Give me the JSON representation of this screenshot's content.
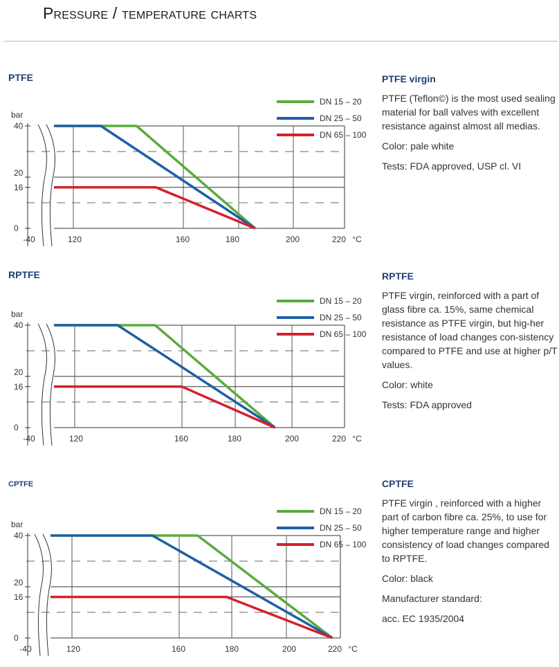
{
  "page": {
    "title": "Pressure / temperature charts"
  },
  "sections": [
    {
      "label": "PTFE",
      "desc_title": "PTFE virgin",
      "desc_body": "PTFE (Teflon©) is the most used sealing material for ball valves with excellent resistance against almost all medias.",
      "desc_lines": [
        "Color: pale white",
        "Tests: FDA approved, USP cl. VI"
      ]
    },
    {
      "label": "RPTFE",
      "desc_title": "RPTFE",
      "desc_body": "PTFE virgin, reinforced with a part of glass fibre ca. 15%, same chemical resistance as PTFE virgin, but hig-her resistance of load changes con-sistency compared to PTFE and use at higher p/T values.",
      "desc_lines": [
        "Color: white",
        "Tests: FDA approved"
      ]
    },
    {
      "label": "CPTFE",
      "desc_title": "CPTFE",
      "desc_body": "PTFE virgin , reinforced with a higher part of carbon fibre ca. 25%, to use for higher temperature range and higher consistency of load changes compared to RPTFE.",
      "desc_lines": [
        "Color: black",
        "Manufacturer standard:",
        "acc. EC 1935/2004"
      ]
    }
  ],
  "colors": {
    "series_green": "#5aab3c",
    "series_blue": "#1e5fa6",
    "series_red": "#d4202c",
    "label_blue": "#1f3f78",
    "rule": "#c9b97a"
  },
  "chart_data": [
    {
      "type": "line",
      "title": "PTFE",
      "ylabel": "bar",
      "xunit": "°C",
      "ytick_labels": [
        "0",
        "16",
        "20",
        "40"
      ],
      "xtick_labels": [
        "-40",
        "120",
        "160",
        "180",
        "200",
        "220"
      ],
      "xlim": [
        120,
        220
      ],
      "ylim": [
        0,
        40
      ],
      "axis_break": true,
      "series": [
        {
          "name": "DN 15 – 20",
          "color": "#5aab3c",
          "points": [
            [
              100,
              40
            ],
            [
              143,
              40
            ],
            [
              186,
              0
            ]
          ]
        },
        {
          "name": "DN 25 – 50",
          "color": "#1e5fa6",
          "points": [
            [
              100,
              40
            ],
            [
              130,
              40
            ],
            [
              186,
              0
            ]
          ]
        },
        {
          "name": "DN 65 – 100",
          "color": "#d4202c",
          "points": [
            [
              100,
              16
            ],
            [
              150,
              16
            ],
            [
              186,
              0
            ]
          ]
        }
      ]
    },
    {
      "type": "line",
      "title": "RPTFE",
      "ylabel": "bar",
      "xunit": "°C",
      "ytick_labels": [
        "0",
        "16",
        "20",
        "40"
      ],
      "xtick_labels": [
        "-40",
        "120",
        "160",
        "180",
        "200",
        "220"
      ],
      "xlim": [
        120,
        220
      ],
      "ylim": [
        0,
        40
      ],
      "axis_break": true,
      "series": [
        {
          "name": "DN 15 – 20",
          "color": "#5aab3c",
          "points": [
            [
              100,
              40
            ],
            [
              150,
              40
            ],
            [
              194,
              0
            ]
          ]
        },
        {
          "name": "DN 25 – 50",
          "color": "#1e5fa6",
          "points": [
            [
              100,
              40
            ],
            [
              136,
              40
            ],
            [
              194,
              0
            ]
          ]
        },
        {
          "name": "DN 65 – 100",
          "color": "#d4202c",
          "points": [
            [
              100,
              16
            ],
            [
              160,
              16
            ],
            [
              194,
              0
            ]
          ]
        }
      ]
    },
    {
      "type": "line",
      "title": "CPTFE",
      "ylabel": "bar",
      "xunit": "°C",
      "ytick_labels": [
        "0",
        "16",
        "20",
        "40"
      ],
      "xtick_labels": [
        "-40",
        "120",
        "160",
        "180",
        "200",
        "220"
      ],
      "xlim": [
        120,
        220
      ],
      "ylim": [
        0,
        40
      ],
      "axis_break": true,
      "series": [
        {
          "name": "DN 15 – 20",
          "color": "#5aab3c",
          "points": [
            [
              100,
              40
            ],
            [
              167,
              40
            ],
            [
              217,
              0
            ]
          ]
        },
        {
          "name": "DN 25 – 50",
          "color": "#1e5fa6",
          "points": [
            [
              100,
              40
            ],
            [
              150,
              40
            ],
            [
              217,
              0
            ]
          ]
        },
        {
          "name": "DN 65 – 100",
          "color": "#d4202c",
          "points": [
            [
              100,
              16
            ],
            [
              178,
              16
            ],
            [
              217,
              0
            ]
          ]
        }
      ]
    }
  ]
}
